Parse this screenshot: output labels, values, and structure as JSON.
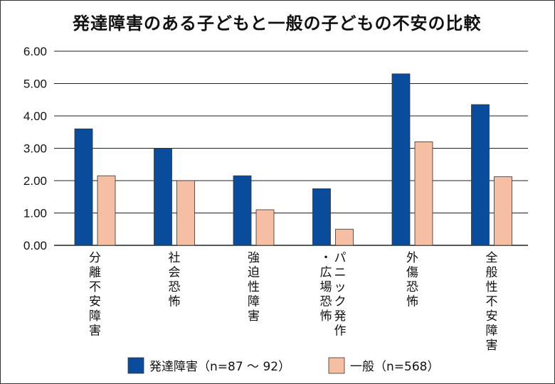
{
  "chart_data": {
    "type": "bar",
    "title": "発達障害のある子どもと一般の子どもの不安の比較",
    "categories": [
      "分離不安障害",
      "社会恐怖",
      "強迫性障害",
      "パニック発作・広場恐怖",
      "外傷恐怖",
      "全般性不安障害"
    ],
    "category_lines": [
      [
        "分離不安障害"
      ],
      [
        "社会恐怖"
      ],
      [
        "強迫性障害"
      ],
      [
        "パニック発作",
        "・広場恐怖"
      ],
      [
        "外傷恐怖"
      ],
      [
        "全般性不安障害"
      ]
    ],
    "series": [
      {
        "name": "発達障害（n=87 ～ 92）",
        "color": "#0a4c9c",
        "values": [
          3.6,
          3.0,
          2.15,
          1.75,
          5.3,
          4.35
        ]
      },
      {
        "name": "一般（n=568）",
        "color": "#f6bfa3",
        "values": [
          2.15,
          2.0,
          1.1,
          0.5,
          3.2,
          2.12
        ]
      }
    ],
    "ylim": [
      0,
      6
    ],
    "yticks": [
      "0.00",
      "1.00",
      "2.00",
      "3.00",
      "4.00",
      "5.00",
      "6.00"
    ],
    "xlabel": "",
    "ylabel": "",
    "grid": true,
    "legend_position": "bottom"
  }
}
